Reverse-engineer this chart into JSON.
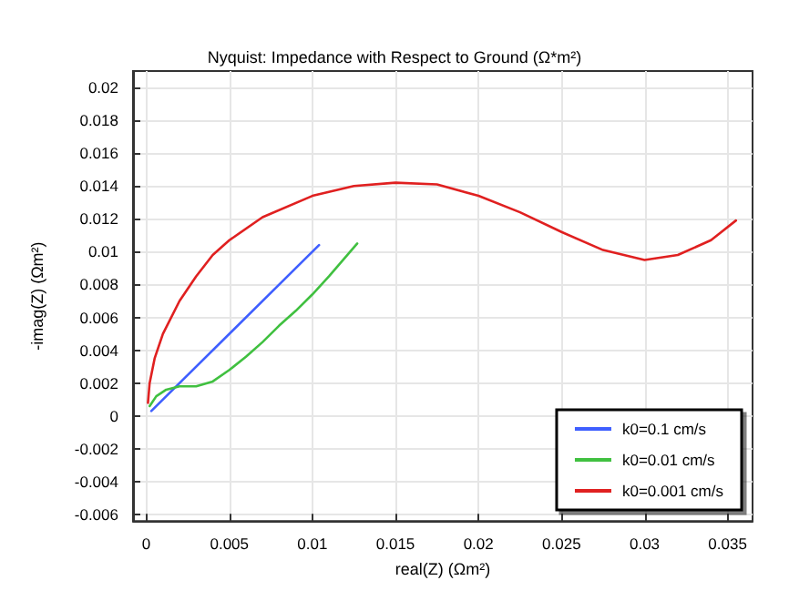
{
  "chart_data": {
    "type": "line",
    "title": "Nyquist: Impedance with Respect to Ground (Ω*m²)",
    "xlabel": "real(Z) (Ωm²)",
    "ylabel": "-imag(Z) (Ωm²)",
    "xlim": [
      -0.0008,
      0.0365
    ],
    "xticks": [
      0,
      0.005,
      0.01,
      0.015,
      0.02,
      0.025,
      0.03,
      0.035
    ],
    "ylim": [
      -0.0064,
      0.021
    ],
    "yticks": [
      -0.006,
      -0.004,
      -0.002,
      0,
      0.002,
      0.004,
      0.006,
      0.008,
      0.01,
      0.012,
      0.014,
      0.016,
      0.018,
      0.02
    ],
    "grid": true,
    "legend": "bottom right",
    "marker": "none",
    "line_style": "solid",
    "series": [
      {
        "name": "k0=0.1 cm/s",
        "color": "#3f5fff",
        "x": [
          0.0003,
          0.0104
        ],
        "values": [
          0.0003,
          0.0104
        ]
      },
      {
        "name": "k0=0.01 cm/s",
        "color": "#40c040",
        "x": [
          0.0002,
          0.0006,
          0.0012,
          0.002,
          0.003,
          0.004,
          0.005,
          0.006,
          0.007,
          0.008,
          0.009,
          0.01,
          0.011,
          0.0127
        ],
        "values": [
          0.0006,
          0.0012,
          0.0016,
          0.0018,
          0.0018,
          0.0021,
          0.0028,
          0.0036,
          0.0045,
          0.0055,
          0.0064,
          0.0074,
          0.0085,
          0.0105
        ]
      },
      {
        "name": "k0=0.001 cm/s",
        "color": "#e02020",
        "x": [
          0.0001,
          0.0002,
          0.0005,
          0.001,
          0.002,
          0.003,
          0.004,
          0.005,
          0.007,
          0.01,
          0.0125,
          0.015,
          0.0175,
          0.02,
          0.0225,
          0.025,
          0.0275,
          0.03,
          0.032,
          0.034,
          0.0355
        ],
        "values": [
          0.0008,
          0.002,
          0.0035,
          0.005,
          0.007,
          0.0085,
          0.0098,
          0.0107,
          0.0121,
          0.0134,
          0.014,
          0.0142,
          0.0141,
          0.0134,
          0.0124,
          0.0112,
          0.0101,
          0.0095,
          0.0098,
          0.0107,
          0.0119
        ]
      }
    ]
  }
}
